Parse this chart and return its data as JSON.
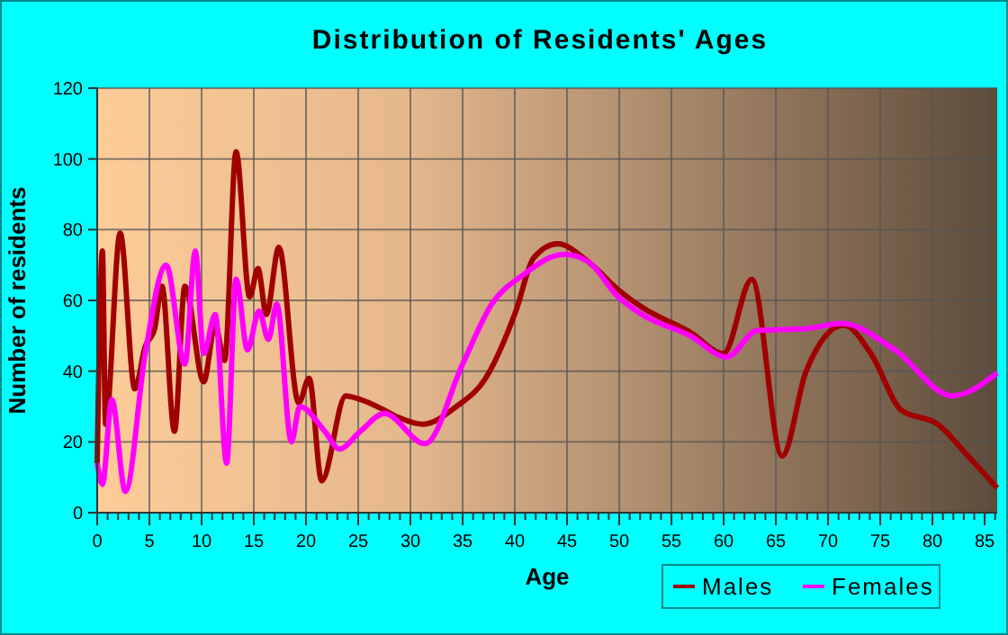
{
  "chart_data": {
    "type": "line",
    "title": "Distribution of Residents' Ages",
    "xlabel": "Age",
    "ylabel": "Number of residents",
    "xlim": [
      0,
      86.2
    ],
    "xticks": [
      0,
      5,
      10,
      15,
      20,
      25,
      30,
      35,
      40,
      45,
      50,
      55,
      60,
      65,
      70,
      75,
      80,
      85
    ],
    "ylim": [
      0,
      120
    ],
    "yticks": [
      0,
      20,
      40,
      60,
      80,
      100,
      120
    ],
    "grid": true,
    "legend": "bottom",
    "marker": "none",
    "line_style": "solid",
    "series": [
      {
        "name": "Males",
        "color": "#a00000",
        "x": [
          0,
          0.5,
          0.8,
          2.2,
          3.6,
          4.6,
          5.5,
          6.2,
          7.4,
          8.4,
          10.2,
          11.3,
          12.2,
          13.3,
          14.6,
          15.4,
          16.2,
          17.4,
          19.3,
          20.3,
          21.5,
          23.8,
          25.2,
          27.5,
          28.8,
          31.2,
          34.4,
          37.2,
          40.1,
          41.8,
          44.1,
          47,
          49.9,
          52.2,
          56.8,
          60,
          62.7,
          65.6,
          67.9,
          71.5,
          74.1,
          77,
          80.5,
          83.4,
          86.2
        ],
        "values": [
          14,
          74,
          25,
          79,
          35,
          47,
          52,
          64,
          23,
          64,
          37,
          53,
          43,
          102,
          61,
          69,
          56,
          75,
          31,
          38,
          9,
          33,
          32,
          29,
          27,
          25,
          30,
          38,
          57,
          72,
          76,
          71,
          63,
          58,
          51,
          45,
          66,
          16,
          40,
          53,
          45,
          29,
          25,
          16,
          7
        ]
      },
      {
        "name": "Females",
        "color": "#ff00ff",
        "x": [
          0,
          0.5,
          1.4,
          2.7,
          4.6,
          6.6,
          8.4,
          9.4,
          10.2,
          11.3,
          12.4,
          13.3,
          14.4,
          15.5,
          16.4,
          17.2,
          18.6,
          19.4,
          21.8,
          23.2,
          25.2,
          27.5,
          31.4,
          35,
          37.8,
          40.7,
          44.7,
          47,
          49.9,
          52.2,
          56.8,
          60.3,
          63.2,
          67.8,
          71.3,
          76.4,
          81.9,
          86.2
        ],
        "values": [
          14,
          8,
          32,
          6,
          45,
          70,
          42,
          74,
          45,
          56,
          14,
          66,
          46,
          57,
          49,
          59,
          20,
          30,
          23,
          18,
          23,
          28,
          19.5,
          42,
          59,
          67,
          73,
          71,
          61,
          56,
          50,
          44,
          51.5,
          52,
          53.5,
          46,
          33,
          39.5
        ]
      }
    ]
  }
}
